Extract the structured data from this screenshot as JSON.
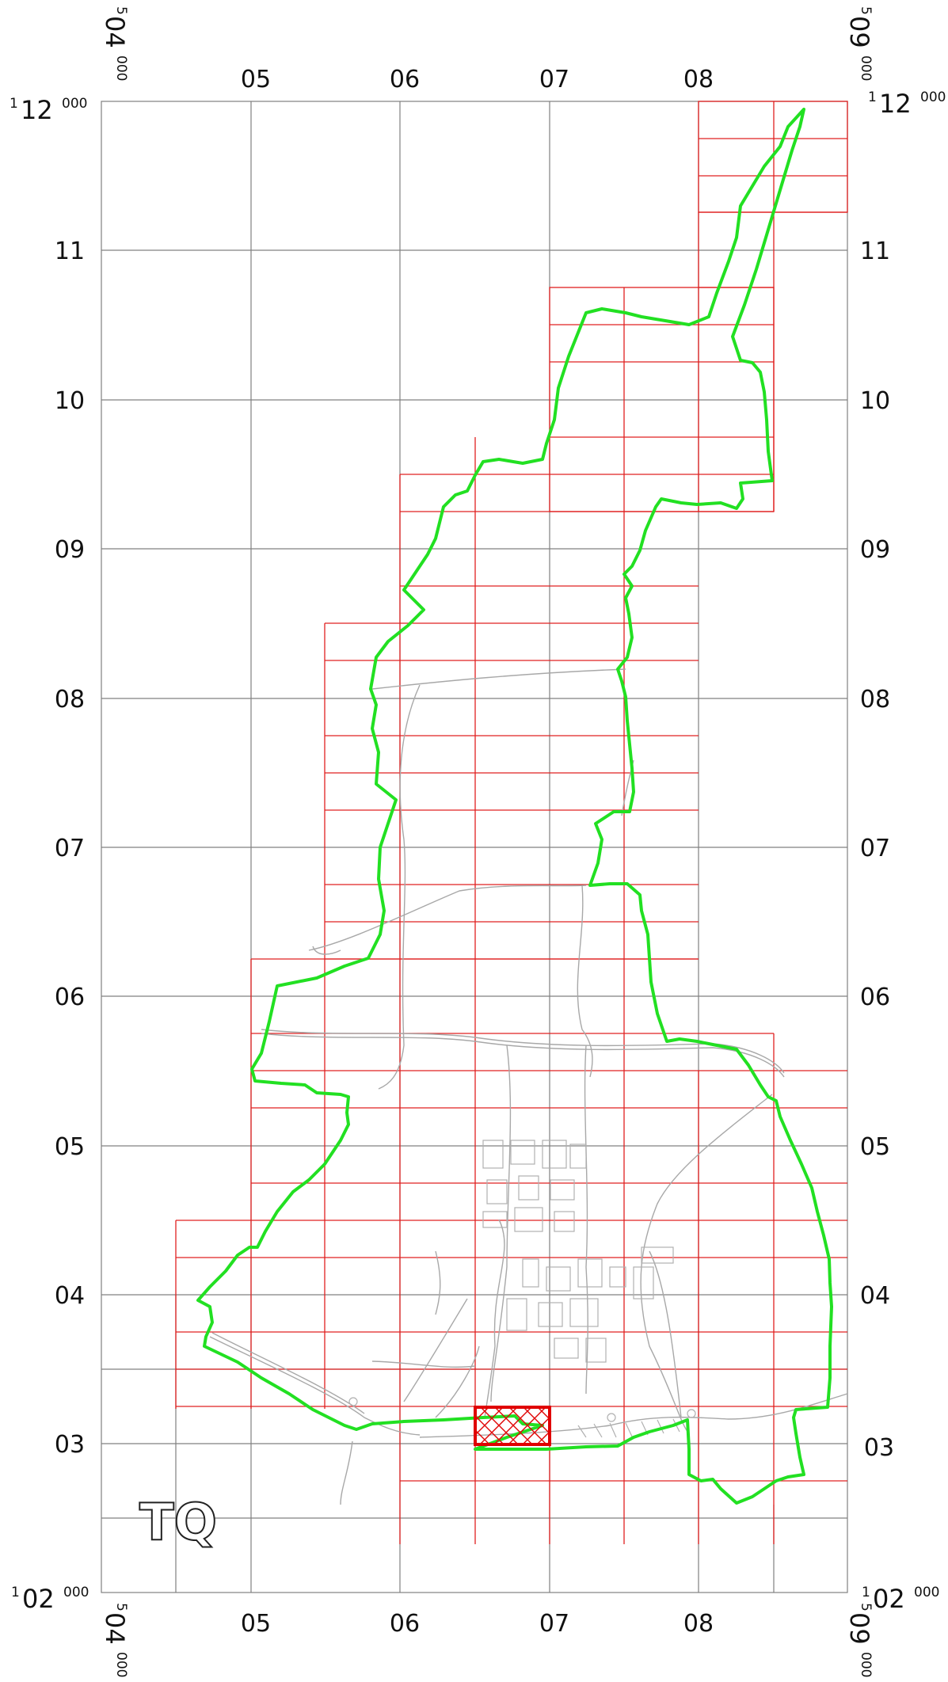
{
  "grid": {
    "x_labels": [
      "05",
      "06",
      "07",
      "08"
    ],
    "y_labels": [
      "11",
      "10",
      "09",
      "08",
      "07",
      "06",
      "05",
      "04",
      "03"
    ],
    "corner": {
      "top_left_easting": {
        "prefix": "5",
        "main": "04",
        "suffix": "000"
      },
      "top_right_easting": {
        "prefix": "5",
        "main": "09",
        "suffix": "000"
      },
      "bottom_left_easting": {
        "prefix": "5",
        "main": "04",
        "suffix": "000"
      },
      "bottom_right_easting": {
        "prefix": "5",
        "main": "09",
        "suffix": "000"
      },
      "top_left_northing": {
        "prefix": "1",
        "main": "12",
        "suffix": "000"
      },
      "top_right_northing": {
        "prefix": "1",
        "main": "12",
        "suffix": "000"
      },
      "bottom_left_northing": {
        "prefix": "1",
        "main": "02",
        "suffix": "000"
      },
      "bottom_right_northing": {
        "prefix": "1",
        "main": "02",
        "suffix": "000"
      }
    }
  },
  "grid_square_letters": "TQ",
  "colors": {
    "boundary": "#22e022",
    "sheet_grid": "#e02020",
    "highlight": "#e00000",
    "roads": "#a8a8a8",
    "km_grid": "#808080"
  }
}
